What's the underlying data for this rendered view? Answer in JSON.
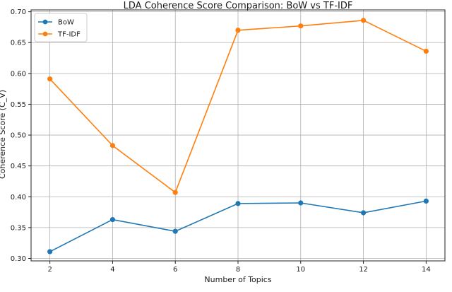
{
  "chart_data": {
    "type": "line",
    "title": "LDA Coherence Score Comparison: BoW vs TF-IDF",
    "xlabel": "Number of Topics",
    "ylabel": "Coherence Score (C_V)",
    "x": [
      2,
      4,
      6,
      8,
      10,
      12,
      14
    ],
    "xticks": [
      "2",
      "4",
      "6",
      "8",
      "10",
      "12",
      "14"
    ],
    "yticks": [
      "0.30",
      "0.35",
      "0.40",
      "0.45",
      "0.50",
      "0.55",
      "0.60",
      "0.65",
      "0.70"
    ],
    "xlim": [
      1.4,
      14.6
    ],
    "ylim": [
      0.296,
      0.703
    ],
    "grid": true,
    "legend_position": "top-left",
    "series": [
      {
        "name": "BoW",
        "color": "#1f77b4",
        "values": [
          0.311,
          0.363,
          0.344,
          0.389,
          0.39,
          0.374,
          0.393
        ]
      },
      {
        "name": "TF-IDF",
        "color": "#ff7f0e",
        "values": [
          0.591,
          0.483,
          0.407,
          0.67,
          0.677,
          0.686,
          0.636
        ]
      }
    ]
  }
}
